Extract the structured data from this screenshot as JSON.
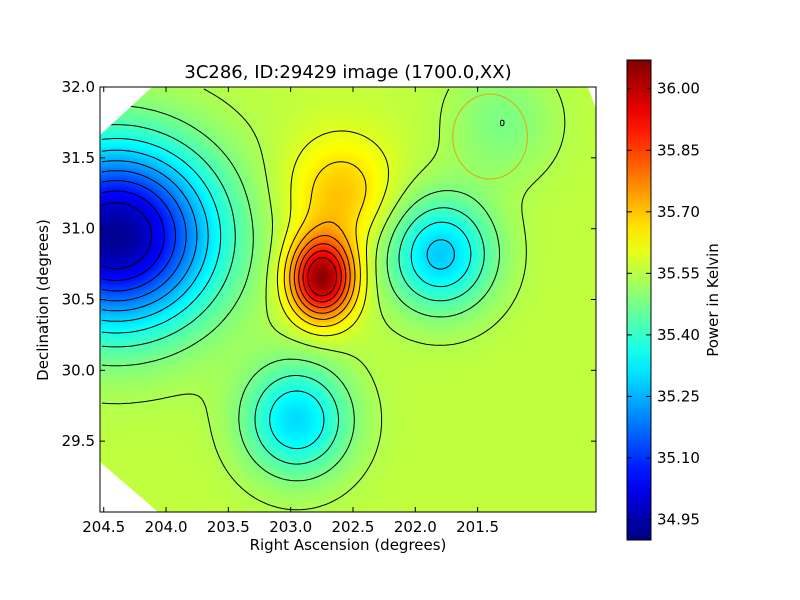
{
  "chart_data": {
    "type": "heatmap",
    "title": "3C286, ID:29429 image (1700.0,XX)",
    "xlabel": "Right Ascension (degrees)",
    "ylabel": "Declination (degrees)",
    "colorbar_label": "Power in Kelvin",
    "xlim": [
      204.53,
      200.55
    ],
    "ylim": [
      29.0,
      32.0
    ],
    "x_ticks": [
      204.5,
      204.0,
      203.5,
      203.0,
      202.5,
      202.0,
      201.5
    ],
    "x_tick_labels": [
      "204.5",
      "204.0",
      "203.5",
      "203.0",
      "202.5",
      "202.0",
      "201.5"
    ],
    "y_ticks": [
      29.5,
      30.0,
      30.5,
      31.0,
      31.5,
      32.0
    ],
    "y_tick_labels": [
      "29.5",
      "30.0",
      "30.5",
      "31.0",
      "31.5",
      "32.0"
    ],
    "colorbar_range": [
      34.9,
      36.07
    ],
    "colorbar_ticks": [
      34.95,
      35.1,
      35.25,
      35.4,
      35.55,
      35.7,
      35.85,
      36.0
    ],
    "colorbar_tick_labels": [
      "34.95",
      "35.10",
      "35.25",
      "35.40",
      "35.55",
      "35.70",
      "35.85",
      "36.00"
    ],
    "colormap": "jet",
    "contours": true,
    "baseline_value": 35.56,
    "features": [
      {
        "kind": "maximum",
        "ra": 202.75,
        "dec": 30.65,
        "value": 36.05
      },
      {
        "kind": "maximum",
        "ra": 202.6,
        "dec": 31.25,
        "value": 35.7
      },
      {
        "kind": "minimum",
        "ra": 204.4,
        "dec": 30.95,
        "value": 34.92
      },
      {
        "kind": "minimum",
        "ra": 201.8,
        "dec": 30.82,
        "value": 35.28
      },
      {
        "kind": "minimum",
        "ra": 202.95,
        "dec": 29.65,
        "value": 35.3
      },
      {
        "kind": "minimum",
        "ra": 201.3,
        "dec": 31.75,
        "value": 35.48
      }
    ],
    "beam_circle": {
      "ra": 201.4,
      "dec": 31.65,
      "radius_deg": 0.3,
      "color": "#d4b21e"
    },
    "colors": {
      "contour": "#000000",
      "frame": "#000000"
    }
  }
}
